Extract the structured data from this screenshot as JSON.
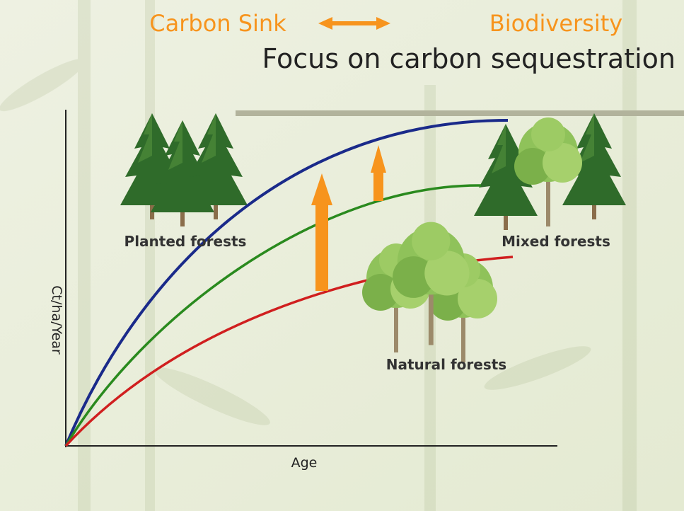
{
  "header": {
    "left": "Carbon Sink",
    "right": "Biodiversity",
    "title": "Focus on carbon sequestration"
  },
  "labels": {
    "planted": "Planted forests",
    "mixed": "Mixed forests",
    "natural": "Natural forests"
  },
  "axes": {
    "y": "Ct/ha/Year",
    "x": "Age"
  }
}
